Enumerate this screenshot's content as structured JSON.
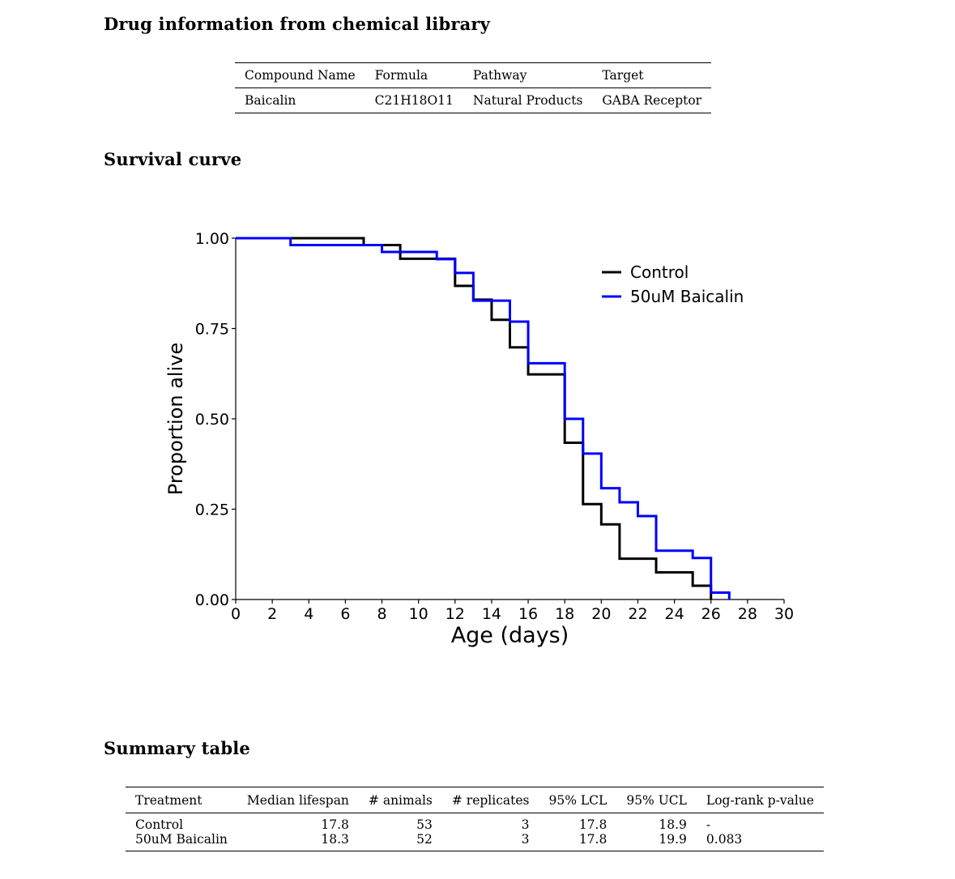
{
  "sections": {
    "drug_info_title": "Drug information from chemical library",
    "survival_title": "Survival curve",
    "summary_title": "Summary table"
  },
  "drug_table": {
    "headers": [
      "Compound Name",
      "Formula",
      "Pathway",
      "Target"
    ],
    "row": [
      "Baicalin",
      "C21H18O11",
      "Natural Products",
      "GABA Receptor"
    ]
  },
  "chart_data": {
    "type": "line",
    "step": true,
    "xlabel": "Age (days)",
    "ylabel": "Proportion alive",
    "xlim": [
      0,
      30
    ],
    "ylim": [
      0,
      1
    ],
    "xticks": [
      0,
      2,
      4,
      6,
      8,
      10,
      12,
      14,
      16,
      18,
      20,
      22,
      24,
      26,
      28,
      30
    ],
    "yticks": [
      0.0,
      0.25,
      0.5,
      0.75,
      1.0
    ],
    "ytick_labels": [
      "0.00",
      "0.25",
      "0.50",
      "0.75",
      "1.00"
    ],
    "legend_position": "top-right",
    "grid": false,
    "series": [
      {
        "name": "Control",
        "color": "#000000",
        "x": [
          0,
          7,
          7,
          9,
          9,
          12,
          12,
          13,
          13,
          14,
          14,
          15,
          15,
          16,
          16,
          18,
          18,
          19,
          19,
          20,
          20,
          21,
          21,
          23,
          23,
          25,
          25,
          26,
          26
        ],
        "y": [
          1.0,
          1.0,
          0.981,
          0.981,
          0.943,
          0.943,
          0.868,
          0.868,
          0.83,
          0.83,
          0.774,
          0.774,
          0.698,
          0.698,
          0.623,
          0.623,
          0.434,
          0.434,
          0.264,
          0.264,
          0.208,
          0.208,
          0.113,
          0.113,
          0.075,
          0.075,
          0.038,
          0.038,
          0.0
        ]
      },
      {
        "name": "50uM Baicalin",
        "color": "#0000ff",
        "x": [
          0,
          3,
          3,
          8,
          8,
          11,
          11,
          12,
          12,
          13,
          13,
          15,
          15,
          16,
          16,
          18,
          18,
          19,
          19,
          20,
          20,
          21,
          21,
          22,
          22,
          23,
          23,
          25,
          25,
          26,
          26,
          27,
          27
        ],
        "y": [
          1.0,
          1.0,
          0.981,
          0.981,
          0.962,
          0.962,
          0.942,
          0.942,
          0.904,
          0.904,
          0.827,
          0.827,
          0.769,
          0.769,
          0.654,
          0.654,
          0.5,
          0.5,
          0.404,
          0.404,
          0.308,
          0.308,
          0.269,
          0.269,
          0.231,
          0.231,
          0.135,
          0.135,
          0.115,
          0.115,
          0.019,
          0.019,
          0.0
        ]
      }
    ]
  },
  "summary_table": {
    "headers": [
      "Treatment",
      "Median lifespan",
      "# animals",
      "# replicates",
      "95% LCL",
      "95% UCL",
      "Log-rank p-value"
    ],
    "rows": [
      [
        "Control",
        "17.8",
        "53",
        "3",
        "17.8",
        "18.9",
        "-"
      ],
      [
        "50uM Baicalin",
        "18.3",
        "52",
        "3",
        "17.8",
        "19.9",
        "0.083"
      ]
    ]
  }
}
